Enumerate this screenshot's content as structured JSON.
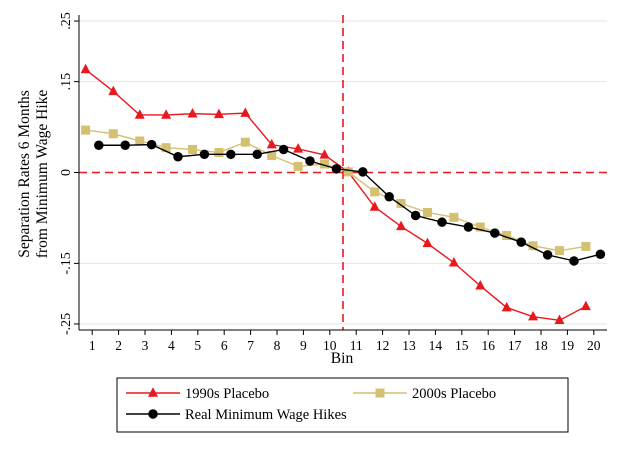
{
  "chart_data": {
    "type": "line",
    "title": "",
    "xlabel": "Bin",
    "ylabel_lines": [
      "Separation Rates 6 Months",
      "from Minimum Wage Hike"
    ],
    "xlim": [
      0.5,
      20.5
    ],
    "ylim": [
      -0.26,
      0.26
    ],
    "x_ticks": [
      1,
      2,
      3,
      4,
      5,
      6,
      7,
      8,
      9,
      10,
      11,
      12,
      13,
      14,
      15,
      16,
      17,
      18,
      19,
      20
    ],
    "x_tick_labels": [
      "1",
      "2",
      "3",
      "4",
      "5",
      "6",
      "7",
      "8",
      "9",
      "10",
      "11",
      "12",
      "13",
      "14",
      "15",
      "16",
      "17",
      "18",
      "19",
      "20"
    ],
    "y_ticks": [
      0.25,
      0.15,
      0,
      -0.15,
      -0.25
    ],
    "y_tick_labels": [
      ".25",
      ".15",
      "0",
      "-.15",
      "-.25"
    ],
    "grid": true,
    "reference_lines": {
      "vertical_x": 10.5,
      "horizontal_y": 0,
      "color": "#e8191e",
      "style": "dashed"
    },
    "legend_position": "bottom",
    "series": [
      {
        "name": "1990s Placebo",
        "color": "#e8191e",
        "marker": "triangle",
        "x": [
          0.75,
          1.8,
          2.8,
          3.8,
          4.8,
          5.8,
          6.8,
          7.8,
          8.8,
          9.8,
          10.7,
          11.7,
          12.7,
          13.7,
          14.7,
          15.7,
          16.7,
          17.7,
          18.7,
          19.7
        ],
        "values": [
          0.17,
          0.134,
          0.095,
          0.095,
          0.097,
          0.096,
          0.098,
          0.046,
          0.039,
          0.029,
          0.001,
          -0.057,
          -0.089,
          -0.117,
          -0.149,
          -0.187,
          -0.223,
          -0.238,
          -0.244,
          -0.221
        ]
      },
      {
        "name": "2000s Placebo",
        "color": "#d4c070",
        "marker": "square",
        "x": [
          0.75,
          1.8,
          2.8,
          3.8,
          4.8,
          5.8,
          6.8,
          7.8,
          8.8,
          9.8,
          10.7,
          11.7,
          12.7,
          13.7,
          14.7,
          15.7,
          16.7,
          17.7,
          18.7,
          19.7
        ],
        "values": [
          0.07,
          0.064,
          0.052,
          0.041,
          0.038,
          0.033,
          0.05,
          0.028,
          0.01,
          0.014,
          0.001,
          -0.032,
          -0.051,
          -0.066,
          -0.074,
          -0.09,
          -0.104,
          -0.121,
          -0.129,
          -0.122
        ]
      },
      {
        "name": "Real Minimum Wage Hikes",
        "color": "#000000",
        "marker": "circle",
        "x": [
          1.25,
          2.25,
          3.25,
          4.25,
          5.25,
          6.25,
          7.25,
          8.25,
          9.25,
          10.25,
          11.25,
          12.25,
          13.25,
          14.25,
          15.25,
          16.25,
          17.25,
          18.25,
          19.25,
          20.25
        ],
        "values": [
          0.045,
          0.045,
          0.046,
          0.026,
          0.03,
          0.03,
          0.03,
          0.038,
          0.019,
          0.006,
          0.001,
          -0.04,
          -0.071,
          -0.082,
          -0.09,
          -0.1,
          -0.115,
          -0.136,
          -0.146,
          -0.135
        ]
      }
    ]
  }
}
